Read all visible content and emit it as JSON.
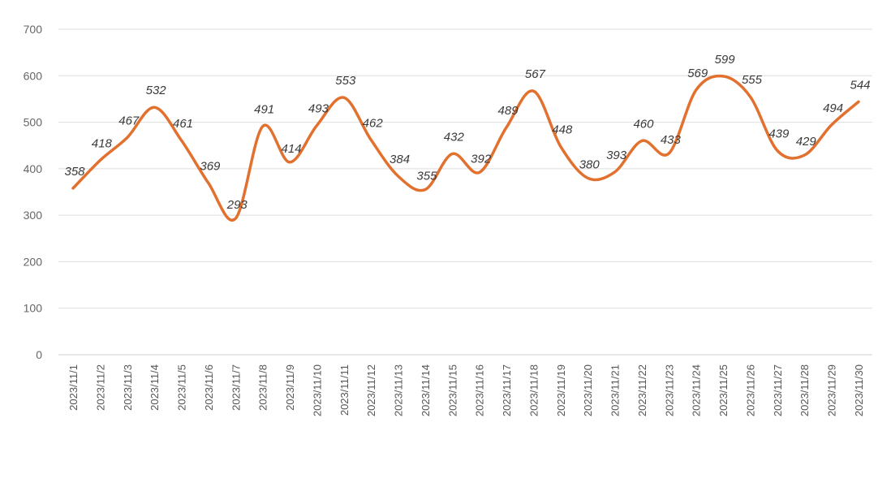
{
  "chart_data": {
    "type": "line",
    "title": "",
    "xlabel": "",
    "ylabel": "",
    "categories": [
      "2023/11/1",
      "2023/11/2",
      "2023/11/3",
      "2023/11/4",
      "2023/11/5",
      "2023/11/6",
      "2023/11/7",
      "2023/11/8",
      "2023/11/9",
      "2023/11/10",
      "2023/11/11",
      "2023/11/12",
      "2023/11/13",
      "2023/11/14",
      "2023/11/15",
      "2023/11/16",
      "2023/11/17",
      "2023/11/18",
      "2023/11/19",
      "2023/11/20",
      "2023/11/21",
      "2023/11/22",
      "2023/11/23",
      "2023/11/24",
      "2023/11/25",
      "2023/11/26",
      "2023/11/27",
      "2023/11/28",
      "2023/11/29",
      "2023/11/30"
    ],
    "series": [
      {
        "values": [
          358,
          418,
          467,
          532,
          461,
          369,
          293,
          491,
          414,
          493,
          553,
          462,
          384,
          355,
          432,
          392,
          489,
          567,
          448,
          380,
          393,
          460,
          433,
          569,
          599,
          555,
          439,
          429,
          494,
          544
        ]
      }
    ],
    "ylim": [
      0,
      700
    ],
    "yticks": [
      0,
      100,
      200,
      300,
      400,
      500,
      600,
      700
    ],
    "grid": true,
    "legend": "none",
    "data_labels": true,
    "smooth": true,
    "colors": {
      "line": "#E2702E",
      "grid": "#dedede",
      "text": "#3a3a3a"
    }
  }
}
